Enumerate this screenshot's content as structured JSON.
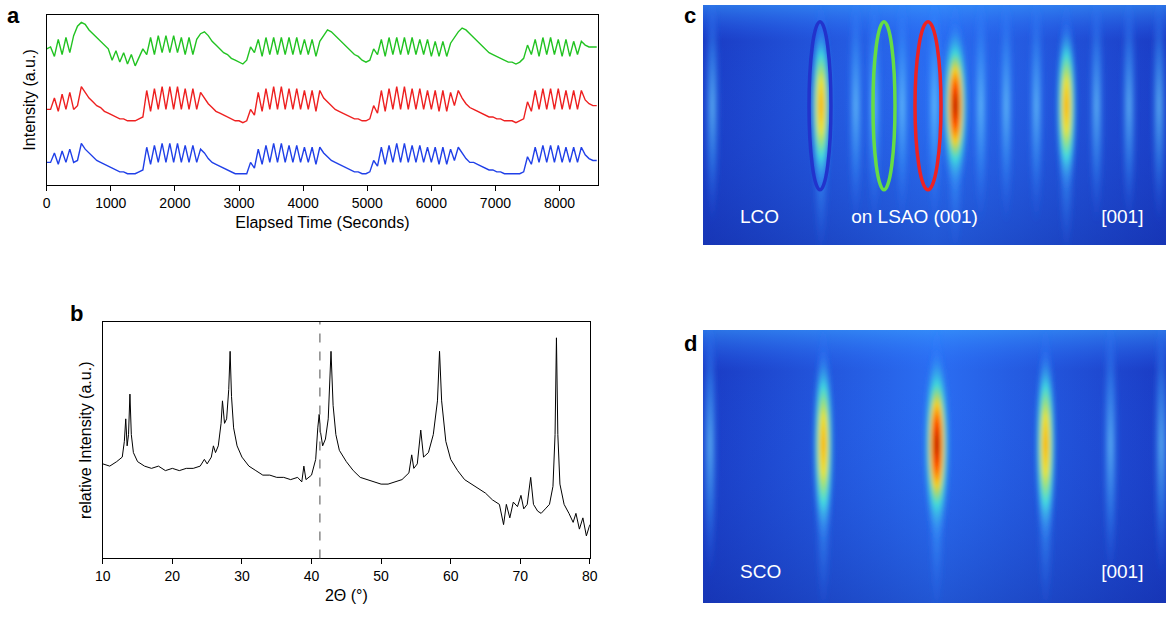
{
  "chart_data": [
    {
      "panel": "a",
      "type": "line",
      "x_label": "Elapsed Time (Seconds)",
      "y_label": "Intensity (a.u.)",
      "x": [
        0,
        60,
        120,
        180,
        240,
        300,
        360,
        420,
        480,
        540,
        600,
        660,
        720,
        780,
        840,
        900,
        960,
        1020,
        1080,
        1140,
        1200,
        1260,
        1320,
        1380,
        1440,
        1500,
        1560,
        1620,
        1680,
        1740,
        1800,
        1860,
        1920,
        1980,
        2040,
        2100,
        2160,
        2220,
        2280,
        2340,
        2400,
        2460,
        2520,
        2580,
        2640,
        2700,
        2760,
        2820,
        2880,
        2940,
        3000,
        3060,
        3120,
        3180,
        3240,
        3300,
        3360,
        3420,
        3480,
        3540,
        3600,
        3660,
        3720,
        3780,
        3840,
        3900,
        3960,
        4020,
        4080,
        4140,
        4200,
        4260,
        4320,
        4380,
        4440,
        4500,
        4560,
        4620,
        4680,
        4740,
        4800,
        4860,
        4920,
        4980,
        5040,
        5100,
        5160,
        5220,
        5280,
        5340,
        5400,
        5460,
        5520,
        5580,
        5640,
        5700,
        5760,
        5820,
        5880,
        5940,
        6000,
        6060,
        6120,
        6180,
        6240,
        6300,
        6360,
        6420,
        6480,
        6540,
        6600,
        6660,
        6720,
        6780,
        6840,
        6900,
        6960,
        7020,
        7080,
        7140,
        7200,
        7260,
        7320,
        7380,
        7440,
        7500,
        7560,
        7620,
        7680,
        7740,
        7800,
        7860,
        7920,
        7980,
        8040,
        8100,
        8160,
        8220,
        8280,
        8340,
        8400,
        8460,
        8520,
        8580
      ],
      "series": [
        {
          "color": "#22c322",
          "values": [
            8.2,
            8.3,
            7.8,
            8.7,
            7.9,
            8.8,
            8.0,
            8.9,
            9.4,
            9.6,
            9.5,
            9.2,
            9.0,
            8.8,
            8.6,
            8.4,
            8.2,
            7.6,
            8.1,
            7.5,
            8.0,
            7.4,
            7.9,
            7.3,
            7.8,
            8.2,
            7.9,
            8.8,
            7.9,
            8.9,
            8.0,
            8.9,
            8.0,
            8.9,
            8.0,
            8.8,
            7.9,
            8.8,
            7.9,
            8.7,
            9.0,
            9.1,
            8.9,
            8.6,
            8.4,
            8.2,
            8.0,
            7.9,
            7.7,
            7.6,
            7.5,
            7.4,
            7.6,
            8.3,
            8.0,
            8.7,
            7.8,
            8.8,
            7.9,
            8.8,
            7.9,
            8.8,
            7.9,
            8.8,
            7.9,
            8.8,
            7.9,
            8.7,
            7.9,
            8.7,
            7.8,
            8.6,
            8.9,
            9.2,
            9.1,
            8.9,
            8.7,
            8.5,
            8.3,
            8.1,
            7.9,
            7.8,
            7.6,
            7.5,
            7.6,
            8.2,
            7.9,
            8.7,
            7.8,
            8.8,
            7.9,
            8.8,
            7.9,
            8.8,
            7.9,
            8.8,
            7.9,
            8.7,
            7.9,
            8.7,
            7.8,
            8.6,
            7.8,
            8.6,
            7.8,
            8.5,
            8.8,
            9.1,
            9.3,
            9.2,
            9.0,
            8.8,
            8.6,
            8.4,
            8.2,
            8.0,
            7.9,
            7.8,
            7.7,
            7.6,
            7.5,
            7.5,
            7.4,
            7.5,
            7.7,
            8.4,
            7.9,
            8.7,
            7.8,
            8.8,
            7.9,
            8.8,
            7.9,
            8.7,
            7.8,
            8.7,
            7.8,
            8.6,
            7.9,
            8.6,
            8.4,
            8.3,
            8.3,
            8.3
          ]
        },
        {
          "color": "#ee2020",
          "values": [
            5.0,
            5.0,
            5.6,
            4.9,
            5.8,
            5.0,
            5.9,
            5.0,
            5.2,
            6.2,
            5.9,
            5.6,
            5.4,
            5.2,
            5.1,
            4.9,
            4.8,
            4.7,
            4.6,
            4.5,
            4.5,
            4.4,
            4.4,
            4.4,
            4.5,
            4.6,
            6.0,
            4.9,
            6.1,
            5.0,
            6.2,
            5.0,
            6.2,
            5.0,
            6.2,
            5.0,
            6.1,
            5.0,
            6.1,
            5.0,
            5.9,
            5.6,
            5.3,
            5.1,
            4.9,
            4.8,
            4.7,
            4.6,
            4.5,
            4.4,
            4.4,
            4.3,
            4.4,
            5.0,
            4.7,
            5.9,
            4.9,
            6.1,
            5.0,
            6.2,
            5.0,
            6.2,
            5.0,
            6.1,
            5.0,
            6.1,
            5.0,
            6.0,
            5.0,
            6.0,
            4.9,
            6.0,
            5.6,
            5.4,
            5.2,
            5.0,
            4.9,
            4.8,
            4.7,
            4.6,
            4.5,
            4.5,
            4.4,
            4.4,
            4.5,
            5.2,
            4.8,
            6.0,
            4.9,
            6.1,
            5.0,
            6.2,
            5.0,
            6.2,
            5.0,
            6.1,
            5.0,
            6.1,
            5.0,
            6.0,
            5.0,
            6.0,
            4.9,
            6.0,
            4.9,
            5.9,
            5.2,
            6.0,
            5.6,
            5.3,
            5.1,
            5.0,
            4.9,
            4.8,
            4.7,
            4.6,
            4.6,
            4.5,
            4.5,
            4.4,
            4.4,
            4.4,
            4.3,
            4.4,
            4.5,
            5.4,
            4.9,
            6.0,
            5.0,
            6.1,
            5.0,
            6.1,
            5.0,
            6.1,
            5.0,
            6.0,
            5.0,
            6.0,
            5.0,
            6.0,
            5.5,
            5.3,
            5.2,
            5.2
          ]
        },
        {
          "color": "#2040e8",
          "values": [
            2.2,
            2.2,
            2.7,
            2.1,
            2.8,
            2.2,
            2.9,
            2.2,
            2.3,
            3.2,
            2.9,
            2.7,
            2.5,
            2.3,
            2.2,
            2.1,
            2.0,
            1.9,
            1.8,
            1.7,
            1.7,
            1.6,
            1.6,
            1.6,
            1.7,
            1.8,
            3.0,
            2.1,
            3.1,
            2.2,
            3.2,
            2.2,
            3.2,
            2.2,
            3.2,
            2.2,
            3.1,
            2.2,
            3.1,
            2.2,
            2.9,
            2.7,
            2.4,
            2.2,
            2.1,
            2.0,
            1.9,
            1.8,
            1.7,
            1.6,
            1.6,
            1.6,
            1.6,
            2.2,
            1.9,
            2.9,
            2.1,
            3.1,
            2.2,
            3.2,
            2.2,
            3.2,
            2.2,
            3.1,
            2.2,
            3.1,
            2.2,
            3.0,
            2.2,
            3.0,
            2.1,
            3.0,
            2.7,
            2.5,
            2.3,
            2.2,
            2.1,
            2.0,
            1.9,
            1.8,
            1.7,
            1.7,
            1.6,
            1.6,
            1.7,
            2.3,
            2.0,
            3.0,
            2.1,
            3.1,
            2.2,
            3.2,
            2.2,
            3.2,
            2.2,
            3.1,
            2.2,
            3.1,
            2.2,
            3.0,
            2.2,
            3.0,
            2.1,
            3.0,
            2.1,
            2.9,
            2.3,
            3.0,
            2.7,
            2.4,
            2.2,
            2.2,
            2.1,
            2.0,
            1.9,
            1.8,
            1.8,
            1.7,
            1.7,
            1.6,
            1.6,
            1.6,
            1.6,
            1.6,
            1.7,
            2.5,
            2.1,
            3.0,
            2.2,
            3.1,
            2.2,
            3.1,
            2.2,
            3.1,
            2.2,
            3.0,
            2.2,
            3.0,
            2.2,
            3.0,
            2.6,
            2.4,
            2.3,
            2.3
          ]
        }
      ],
      "xlim": [
        0,
        8600
      ],
      "xticks": [
        0,
        1000,
        2000,
        3000,
        4000,
        5000,
        6000,
        7000,
        8000
      ],
      "ylim": [
        1,
        10
      ],
      "tick_labels": "x",
      "grid": false
    },
    {
      "panel": "b",
      "type": "line",
      "x_label": "2Θ (°)",
      "y_label": "relative Intensity (a.u.)",
      "x": [
        10,
        11,
        12,
        12.8,
        13.1,
        13.3,
        13.5,
        13.7,
        13.9,
        14.1,
        14.4,
        15,
        16,
        17,
        18,
        19,
        20,
        21,
        22,
        23,
        24,
        24.6,
        25.0,
        25.6,
        25.9,
        26.2,
        26.6,
        27.0,
        27.2,
        27.5,
        27.8,
        28.1,
        28.3,
        28.5,
        28.8,
        29.3,
        30,
        31,
        32,
        33,
        34,
        35,
        36,
        37,
        38,
        38.6,
        38.9,
        39.2,
        40,
        40.6,
        40.9,
        41.1,
        41.3,
        41.6,
        42.0,
        42.4,
        42.8,
        43.1,
        43.5,
        44,
        45,
        46,
        47,
        48,
        49,
        50,
        51,
        52,
        53,
        54.0,
        54.4,
        54.7,
        55.2,
        55.7,
        56.1,
        56.8,
        57.5,
        58.1,
        58.4,
        58.7,
        59.3,
        60,
        61,
        62,
        63,
        64,
        65,
        66,
        67,
        67.6,
        68,
        68.5,
        69,
        69.6,
        70.1,
        70.5,
        71.0,
        71.5,
        71.9,
        72.5,
        73,
        73.6,
        74.2,
        74.7,
        75.0,
        75.2,
        75.4,
        75.7,
        76.3,
        77,
        77.6,
        78,
        78.5,
        79,
        79.5,
        80
      ],
      "values": [
        0.42,
        0.41,
        0.43,
        0.45,
        0.52,
        0.62,
        0.5,
        0.55,
        0.73,
        0.55,
        0.47,
        0.43,
        0.41,
        0.4,
        0.41,
        0.39,
        0.4,
        0.39,
        0.4,
        0.4,
        0.41,
        0.44,
        0.42,
        0.45,
        0.5,
        0.47,
        0.5,
        0.6,
        0.7,
        0.6,
        0.62,
        0.75,
        0.92,
        0.72,
        0.58,
        0.5,
        0.45,
        0.41,
        0.39,
        0.37,
        0.37,
        0.36,
        0.36,
        0.35,
        0.36,
        0.34,
        0.41,
        0.35,
        0.37,
        0.44,
        0.58,
        0.64,
        0.56,
        0.5,
        0.53,
        0.62,
        0.92,
        0.68,
        0.55,
        0.48,
        0.43,
        0.39,
        0.36,
        0.35,
        0.34,
        0.33,
        0.33,
        0.34,
        0.35,
        0.38,
        0.46,
        0.4,
        0.42,
        0.57,
        0.45,
        0.47,
        0.55,
        0.7,
        0.92,
        0.7,
        0.52,
        0.44,
        0.39,
        0.35,
        0.33,
        0.31,
        0.29,
        0.26,
        0.24,
        0.15,
        0.24,
        0.18,
        0.25,
        0.23,
        0.28,
        0.22,
        0.24,
        0.36,
        0.24,
        0.21,
        0.2,
        0.22,
        0.24,
        0.32,
        0.55,
        0.98,
        0.55,
        0.33,
        0.24,
        0.2,
        0.16,
        0.2,
        0.13,
        0.18,
        0.1,
        0.15
      ],
      "color": "#000000",
      "reference_line": {
        "x": 41.2,
        "line_style": "dashed"
      },
      "xlim": [
        10,
        80
      ],
      "xticks": [
        10,
        20,
        30,
        40,
        50,
        60,
        70,
        80
      ],
      "ylim": [
        0,
        1.05
      ],
      "tick_labels": "x",
      "grid": false
    }
  ],
  "images": [
    {
      "panel": "c",
      "texts": [
        "LCO",
        "on LSAO (001)",
        "[001]"
      ]
    },
    {
      "panel": "d",
      "texts": [
        "SCO",
        "[001]"
      ]
    }
  ]
}
